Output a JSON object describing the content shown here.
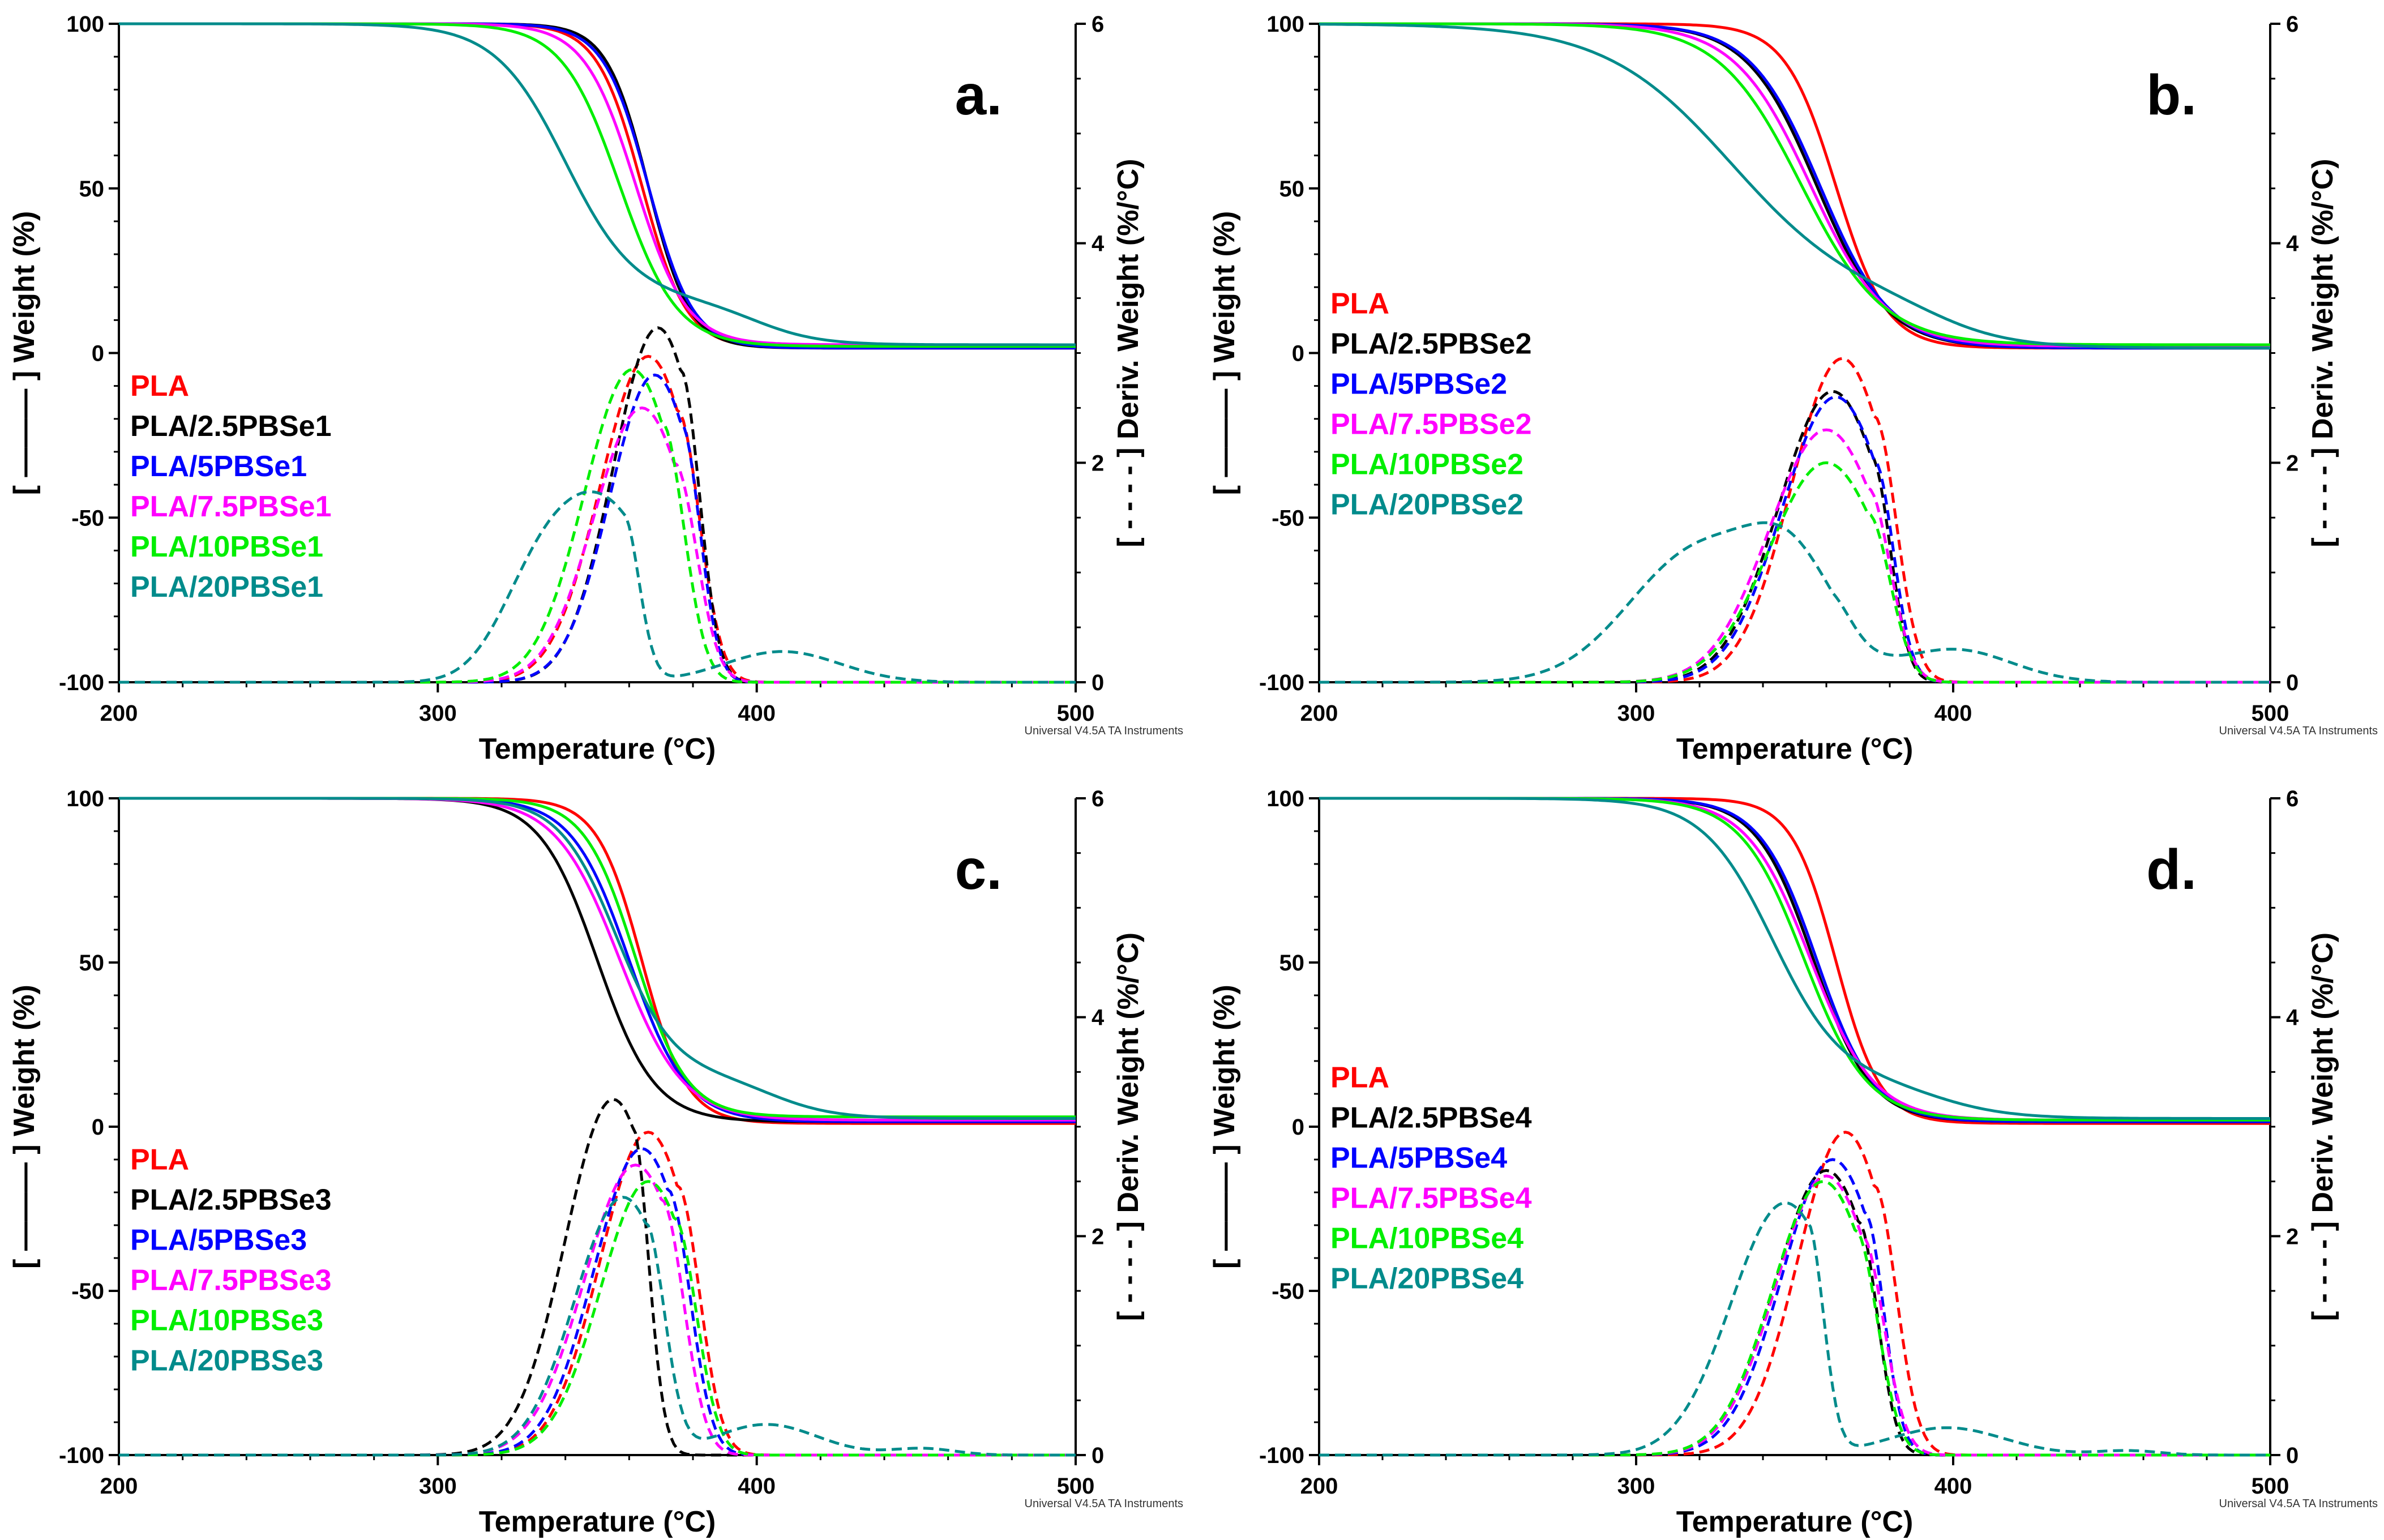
{
  "chart_data": [
    {
      "type": "line",
      "panel_label": "a.",
      "xlabel": "Temperature (°C)",
      "ylabel_left": "[ ——— ] Weight (%)",
      "ylabel_right": "[ - - - - ] Deriv. Weight (%/°C)",
      "xlim": [
        200,
        500
      ],
      "ylim_left": [
        -100,
        100
      ],
      "ylim_right": [
        0,
        6
      ],
      "xticks": [
        "200",
        "300",
        "400",
        "500"
      ],
      "yticks_left": [
        "-100",
        "-50",
        "0",
        "50",
        "100"
      ],
      "yticks_right": [
        "0",
        "2",
        "4",
        "6"
      ],
      "footer": "Universal V4.5A TA Instruments",
      "series": [
        {
          "name": "PLA",
          "color": "#ff0000",
          "weight": {
            "t50": 364,
            "w": 7,
            "residue": 1.5,
            "t2": 0,
            "w2": 1,
            "f2": 0
          },
          "deriv": {
            "peaks": [
              {
                "c": 366,
                "s": 15,
                "h": 2.97
              }
            ],
            "cut": 375,
            "tail": 7
          }
        },
        {
          "name": "PLA/2.5PBSe1",
          "color": "#000000",
          "weight": {
            "t50": 366,
            "w": 6.5,
            "residue": 1.5,
            "t2": 0,
            "w2": 1,
            "f2": 0
          },
          "deriv": {
            "peaks": [
              {
                "c": 369,
                "s": 14,
                "h": 3.23
              }
            ],
            "cut": 376,
            "tail": 6
          }
        },
        {
          "name": "PLA/5PBSe1",
          "color": "#0000ff",
          "weight": {
            "t50": 366,
            "w": 7,
            "residue": 1.5,
            "t2": 0,
            "w2": 1,
            "f2": 0
          },
          "deriv": {
            "peaks": [
              {
                "c": 368,
                "s": 14,
                "h": 2.8
              }
            ],
            "cut": 376,
            "tail": 6
          }
        },
        {
          "name": "PLA/7.5PBSe1",
          "color": "#ff00ff",
          "weight": {
            "t50": 362,
            "w": 8,
            "residue": 2.5,
            "t2": 0,
            "w2": 1,
            "f2": 0
          },
          "deriv": {
            "peaks": [
              {
                "c": 364,
                "s": 15,
                "h": 2.5
              }
            ],
            "cut": 374,
            "tail": 7
          }
        },
        {
          "name": "PLA/10PBSe1",
          "color": "#00ee00",
          "weight": {
            "t50": 357,
            "w": 9,
            "residue": 2.0,
            "t2": 0,
            "w2": 1,
            "f2": 0
          },
          "deriv": {
            "peaks": [
              {
                "c": 361,
                "s": 15,
                "h": 2.85
              }
            ],
            "cut": 370,
            "tail": 7
          }
        },
        {
          "name": "PLA/20PBSe1",
          "color": "#008b8b",
          "weight": {
            "t50": 340,
            "w": 11,
            "residue": 2.5,
            "t2": 400,
            "w2": 10,
            "f2": 0.14
          },
          "deriv": {
            "peaks": [
              {
                "c": 352,
                "s": 17,
                "h": 1.6
              },
              {
                "c": 330,
                "s": 12,
                "h": 0.55
              },
              {
                "c": 408,
                "s": 18,
                "h": 0.28
              }
            ],
            "cut": 358,
            "tail": 5
          }
        }
      ],
      "legend": [
        "PLA",
        "PLA/2.5PBSe1",
        "PLA/5PBSe1",
        "PLA/7.5PBSe1",
        "PLA/10PBSe1",
        "PLA/20PBSe1"
      ]
    },
    {
      "type": "line",
      "panel_label": "b.",
      "xlabel": "Temperature (°C)",
      "ylabel_left": "[ ——— ] Weight (%)",
      "ylabel_right": "[ - - - - ] Deriv. Weight (%/°C)",
      "xlim": [
        200,
        500
      ],
      "ylim_left": [
        -100,
        100
      ],
      "ylim_right": [
        0,
        6
      ],
      "xticks": [
        "200",
        "300",
        "400",
        "500"
      ],
      "yticks_left": [
        "-100",
        "-50",
        "0",
        "50",
        "100"
      ],
      "yticks_right": [
        "0",
        "2",
        "4",
        "6"
      ],
      "footer": "Universal V4.5A TA Instruments",
      "series": [
        {
          "name": "PLA",
          "color": "#ff0000",
          "weight": {
            "t50": 363,
            "w": 8,
            "residue": 1.5,
            "t2": 0,
            "w2": 1,
            "f2": 0
          },
          "deriv": {
            "peaks": [
              {
                "c": 365,
                "s": 16,
                "h": 2.95
              }
            ],
            "cut": 375,
            "tail": 7
          }
        },
        {
          "name": "PLA/2.5PBSe2",
          "color": "#000000",
          "weight": {
            "t50": 357,
            "w": 11,
            "residue": 1.5,
            "t2": 0,
            "w2": 1,
            "f2": 0
          },
          "deriv": {
            "peaks": [
              {
                "c": 362,
                "s": 17,
                "h": 2.65
              }
            ],
            "cut": 374,
            "tail": 6
          }
        },
        {
          "name": "PLA/5PBSe2",
          "color": "#0000ff",
          "weight": {
            "t50": 358,
            "w": 11,
            "residue": 1.5,
            "t2": 0,
            "w2": 1,
            "f2": 0
          },
          "deriv": {
            "peaks": [
              {
                "c": 363,
                "s": 17,
                "h": 2.6
              }
            ],
            "cut": 375,
            "tail": 6
          }
        },
        {
          "name": "PLA/7.5PBSe2",
          "color": "#ff00ff",
          "weight": {
            "t50": 355,
            "w": 12,
            "residue": 2.0,
            "t2": 0,
            "w2": 1,
            "f2": 0
          },
          "deriv": {
            "peaks": [
              {
                "c": 360,
                "s": 18,
                "h": 2.3
              }
            ],
            "cut": 373,
            "tail": 7
          }
        },
        {
          "name": "PLA/10PBSe2",
          "color": "#00ee00",
          "weight": {
            "t50": 352,
            "w": 13,
            "residue": 2.5,
            "t2": 0,
            "w2": 1,
            "f2": 0
          },
          "deriv": {
            "peaks": [
              {
                "c": 360,
                "s": 18,
                "h": 2.0
              }
            ],
            "cut": 373,
            "tail": 7
          }
        },
        {
          "name": "PLA/20PBSe2",
          "color": "#008b8b",
          "weight": {
            "t50": 330,
            "w": 20,
            "residue": 1.5,
            "t2": 395,
            "w2": 12,
            "f2": 0.14
          },
          "deriv": {
            "peaks": [
              {
                "c": 320,
                "s": 22,
                "h": 1.2
              },
              {
                "c": 350,
                "s": 14,
                "h": 0.85
              },
              {
                "c": 400,
                "s": 18,
                "h": 0.3
              }
            ],
            "cut": 362,
            "tail": 6
          }
        }
      ],
      "legend": [
        "PLA",
        "PLA/2.5PBSe2",
        "PLA/5PBSe2",
        "PLA/7.5PBSe2",
        "PLA/10PBSe2",
        "PLA/20PBSe2"
      ]
    },
    {
      "type": "line",
      "panel_label": "c.",
      "xlabel": "Temperature (°C)",
      "ylabel_left": "[ ——— ] Weight (%)",
      "ylabel_right": "[ - - - - ] Deriv. Weight (%/°C)",
      "xlim": [
        200,
        500
      ],
      "ylim_left": [
        -100,
        100
      ],
      "ylim_right": [
        0,
        6
      ],
      "xticks": [
        "200",
        "300",
        "400",
        "500"
      ],
      "yticks_left": [
        "-100",
        "-50",
        "0",
        "50",
        "100"
      ],
      "yticks_right": [
        "0",
        "2",
        "4",
        "6"
      ],
      "footer": "Universal V4.5A TA Instruments",
      "series": [
        {
          "name": "PLA",
          "color": "#ff0000",
          "weight": {
            "t50": 364,
            "w": 7,
            "residue": 1.0,
            "t2": 0,
            "w2": 1,
            "f2": 0
          },
          "deriv": {
            "peaks": [
              {
                "c": 366,
                "s": 15,
                "h": 2.95
              }
            ],
            "cut": 375,
            "tail": 7
          }
        },
        {
          "name": "PLA/2.5PBSe3",
          "color": "#000000",
          "weight": {
            "t50": 350,
            "w": 9,
            "residue": 1.5,
            "t2": 0,
            "w2": 1,
            "f2": 0
          },
          "deriv": {
            "peaks": [
              {
                "c": 355,
                "s": 15,
                "h": 3.25
              }
            ],
            "cut": 361,
            "tail": 5
          }
        },
        {
          "name": "PLA/5PBSe3",
          "color": "#0000ff",
          "weight": {
            "t50": 360,
            "w": 9,
            "residue": 1.5,
            "t2": 0,
            "w2": 1,
            "f2": 0
          },
          "deriv": {
            "peaks": [
              {
                "c": 364,
                "s": 15,
                "h": 2.8
              }
            ],
            "cut": 372,
            "tail": 7
          }
        },
        {
          "name": "PLA/7.5PBSe3",
          "color": "#ff00ff",
          "weight": {
            "t50": 357,
            "w": 10,
            "residue": 2.0,
            "t2": 0,
            "w2": 1,
            "f2": 0
          },
          "deriv": {
            "peaks": [
              {
                "c": 362,
                "s": 16,
                "h": 2.65
              }
            ],
            "cut": 370,
            "tail": 7
          }
        },
        {
          "name": "PLA/10PBSe3",
          "color": "#00ee00",
          "weight": {
            "t50": 362,
            "w": 8,
            "residue": 3.0,
            "t2": 0,
            "w2": 1,
            "f2": 0
          },
          "deriv": {
            "peaks": [
              {
                "c": 366,
                "s": 15,
                "h": 2.5
              }
            ],
            "cut": 374,
            "tail": 7
          }
        },
        {
          "name": "PLA/20PBSe3",
          "color": "#008b8b",
          "weight": {
            "t50": 356,
            "w": 9,
            "residue": 2.5,
            "t2": 405,
            "w2": 10,
            "f2": 0.14
          },
          "deriv": {
            "peaks": [
              {
                "c": 358,
                "s": 15,
                "h": 2.35
              },
              {
                "c": 403,
                "s": 16,
                "h": 0.28
              },
              {
                "c": 452,
                "s": 10,
                "h": 0.06
              }
            ],
            "cut": 365,
            "tail": 6
          }
        }
      ],
      "legend": [
        "PLA",
        "PLA/2.5PBSe3",
        "PLA/5PBSe3",
        "PLA/7.5PBSe3",
        "PLA/10PBSe3",
        "PLA/20PBSe3"
      ]
    },
    {
      "type": "line",
      "panel_label": "d.",
      "xlabel": "Temperature (°C)",
      "ylabel_left": "[ ——— ] Weight (%)",
      "ylabel_right": "[ - - - - ] Deriv. Weight (%/°C)",
      "xlim": [
        200,
        500
      ],
      "ylim_left": [
        -100,
        100
      ],
      "ylim_right": [
        0,
        6
      ],
      "xticks": [
        "200",
        "300",
        "400",
        "500"
      ],
      "yticks_left": [
        "-100",
        "-50",
        "0",
        "50",
        "100"
      ],
      "yticks_right": [
        "0",
        "2",
        "4",
        "6"
      ],
      "footer": "Universal V4.5A TA Instruments",
      "series": [
        {
          "name": "PLA",
          "color": "#ff0000",
          "weight": {
            "t50": 363,
            "w": 7,
            "residue": 1.0,
            "t2": 0,
            "w2": 1,
            "f2": 0
          },
          "deriv": {
            "peaks": [
              {
                "c": 366,
                "s": 15,
                "h": 2.95
              }
            ],
            "cut": 375,
            "tail": 7
          }
        },
        {
          "name": "PLA/2.5PBSe4",
          "color": "#000000",
          "weight": {
            "t50": 356,
            "w": 9,
            "residue": 1.5,
            "t2": 0,
            "w2": 1,
            "f2": 0
          },
          "deriv": {
            "peaks": [
              {
                "c": 360,
                "s": 16,
                "h": 2.6
              }
            ],
            "cut": 370,
            "tail": 6
          }
        },
        {
          "name": "PLA/5PBSe4",
          "color": "#0000ff",
          "weight": {
            "t50": 357,
            "w": 9,
            "residue": 1.5,
            "t2": 0,
            "w2": 1,
            "f2": 0
          },
          "deriv": {
            "peaks": [
              {
                "c": 362,
                "s": 16,
                "h": 2.7
              }
            ],
            "cut": 372,
            "tail": 6
          }
        },
        {
          "name": "PLA/7.5PBSe4",
          "color": "#ff00ff",
          "weight": {
            "t50": 355,
            "w": 10,
            "residue": 2.0,
            "t2": 0,
            "w2": 1,
            "f2": 0
          },
          "deriv": {
            "peaks": [
              {
                "c": 360,
                "s": 16,
                "h": 2.55
              }
            ],
            "cut": 371,
            "tail": 7
          }
        },
        {
          "name": "PLA/10PBSe4",
          "color": "#00ee00",
          "weight": {
            "t50": 353,
            "w": 10,
            "residue": 2.0,
            "t2": 0,
            "w2": 1,
            "f2": 0
          },
          "deriv": {
            "peaks": [
              {
                "c": 359,
                "s": 16,
                "h": 2.5
              }
            ],
            "cut": 369,
            "tail": 7
          }
        },
        {
          "name": "PLA/20PBSe4",
          "color": "#008b8b",
          "weight": {
            "t50": 343,
            "w": 11,
            "residue": 2.5,
            "t2": 395,
            "w2": 12,
            "f2": 0.12
          },
          "deriv": {
            "peaks": [
              {
                "c": 347,
                "s": 17,
                "h": 2.3
              },
              {
                "c": 398,
                "s": 18,
                "h": 0.25
              },
              {
                "c": 455,
                "s": 10,
                "h": 0.04
              }
            ],
            "cut": 354,
            "tail": 5
          }
        }
      ],
      "legend": [
        "PLA",
        "PLA/2.5PBSe4",
        "PLA/5PBSe4",
        "PLA/7.5PBSe4",
        "PLA/10PBSe4",
        "PLA/20PBSe4"
      ]
    }
  ]
}
